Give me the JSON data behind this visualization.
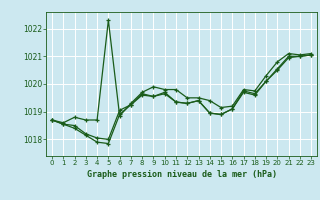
{
  "title": "Graphe pression niveau de la mer (hPa)",
  "bg_color": "#cce8f0",
  "grid_color": "#ffffff",
  "line_color": "#1a5c1a",
  "xlim": [
    -0.5,
    23.5
  ],
  "ylim": [
    1017.4,
    1022.6
  ],
  "yticks": [
    1018,
    1019,
    1020,
    1021,
    1022
  ],
  "xticks": [
    0,
    1,
    2,
    3,
    4,
    5,
    6,
    7,
    8,
    9,
    10,
    11,
    12,
    13,
    14,
    15,
    16,
    17,
    18,
    19,
    20,
    21,
    22,
    23
  ],
  "series1_x": [
    0,
    1,
    2,
    3,
    4,
    5,
    6,
    7,
    8,
    9,
    10,
    11,
    12,
    13,
    14,
    15,
    16,
    17,
    18,
    19,
    20,
    21,
    22,
    23
  ],
  "series1_y": [
    1018.7,
    1018.6,
    1018.8,
    1018.7,
    1018.7,
    1022.3,
    1018.85,
    1019.3,
    1019.7,
    1019.9,
    1019.8,
    1019.8,
    1019.5,
    1019.5,
    1019.4,
    1019.15,
    1019.2,
    1019.8,
    1019.75,
    1020.3,
    1020.8,
    1021.1,
    1021.05,
    1021.1
  ],
  "series2_x": [
    0,
    1,
    2,
    3,
    4,
    5,
    6,
    7,
    8,
    9,
    10,
    11,
    12,
    13,
    14,
    15,
    16,
    17,
    18,
    19,
    20,
    21,
    22,
    23
  ],
  "series2_y": [
    1018.7,
    1018.55,
    1018.4,
    1018.15,
    1017.9,
    1017.85,
    1018.9,
    1019.25,
    1019.65,
    1019.55,
    1019.7,
    1019.35,
    1019.3,
    1019.4,
    1018.95,
    1018.9,
    1019.1,
    1019.7,
    1019.6,
    1020.1,
    1020.5,
    1020.95,
    1021.0,
    1021.05
  ],
  "series3_x": [
    0,
    1,
    2,
    3,
    4,
    5,
    6,
    7,
    8,
    9,
    10,
    11,
    12,
    13,
    14,
    15,
    16,
    17,
    18,
    19,
    20,
    21,
    22,
    23
  ],
  "series3_y": [
    1018.7,
    1018.55,
    1018.5,
    1018.2,
    1018.05,
    1018.0,
    1019.05,
    1019.25,
    1019.6,
    1019.55,
    1019.65,
    1019.35,
    1019.3,
    1019.4,
    1018.95,
    1018.9,
    1019.1,
    1019.75,
    1019.65,
    1020.1,
    1020.55,
    1021.0,
    1021.0,
    1021.05
  ],
  "marker_size": 3.5,
  "line_width": 0.9,
  "tick_fontsize": 5.0,
  "label_fontsize": 6.0
}
